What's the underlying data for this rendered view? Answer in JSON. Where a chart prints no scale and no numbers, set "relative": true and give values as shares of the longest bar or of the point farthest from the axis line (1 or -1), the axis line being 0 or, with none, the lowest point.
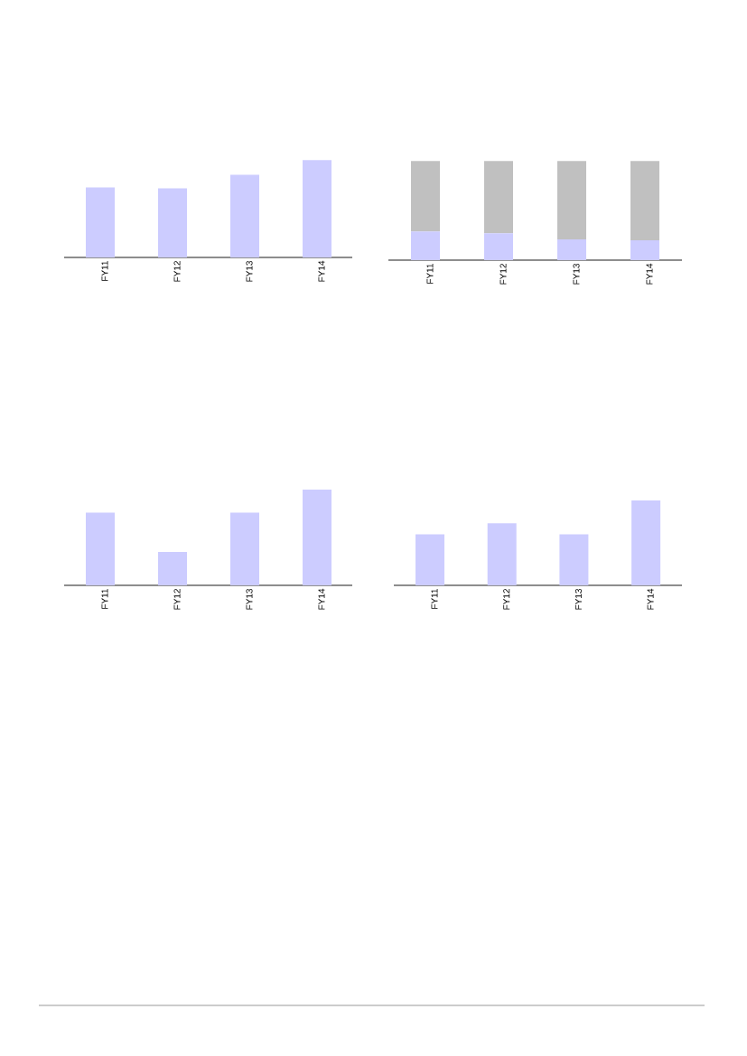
{
  "chart_data": [
    {
      "type": "bar",
      "relative": true,
      "categories": [
        "FY11",
        "FY12",
        "FY13",
        "FY14"
      ],
      "series": [
        {
          "color": "#ccccff",
          "values": [
            0.72,
            0.71,
            0.85,
            1
          ]
        }
      ]
    },
    {
      "type": "bar",
      "relative": true,
      "stacked": true,
      "categories": [
        "FY11",
        "FY12",
        "FY13",
        "FY14"
      ],
      "series": [
        {
          "color": "#ccccff",
          "values": [
            0.29,
            0.27,
            0.21,
            0.2
          ]
        },
        {
          "color": "#c0c0c0",
          "values": [
            0.71,
            0.73,
            0.79,
            0.8
          ]
        }
      ]
    },
    {
      "type": "bar",
      "relative": true,
      "categories": [
        "FY11",
        "FY12",
        "FY13",
        "FY14"
      ],
      "color": "#ccccff",
      "values": [
        0.76,
        0.35,
        0.76,
        1
      ]
    },
    {
      "type": "bar",
      "relative": true,
      "categories": [
        "FY11",
        "FY12",
        "FY13",
        "FY14"
      ],
      "color": "#ccccff",
      "values": [
        0.6,
        0.73,
        0.6,
        1
      ]
    }
  ]
}
